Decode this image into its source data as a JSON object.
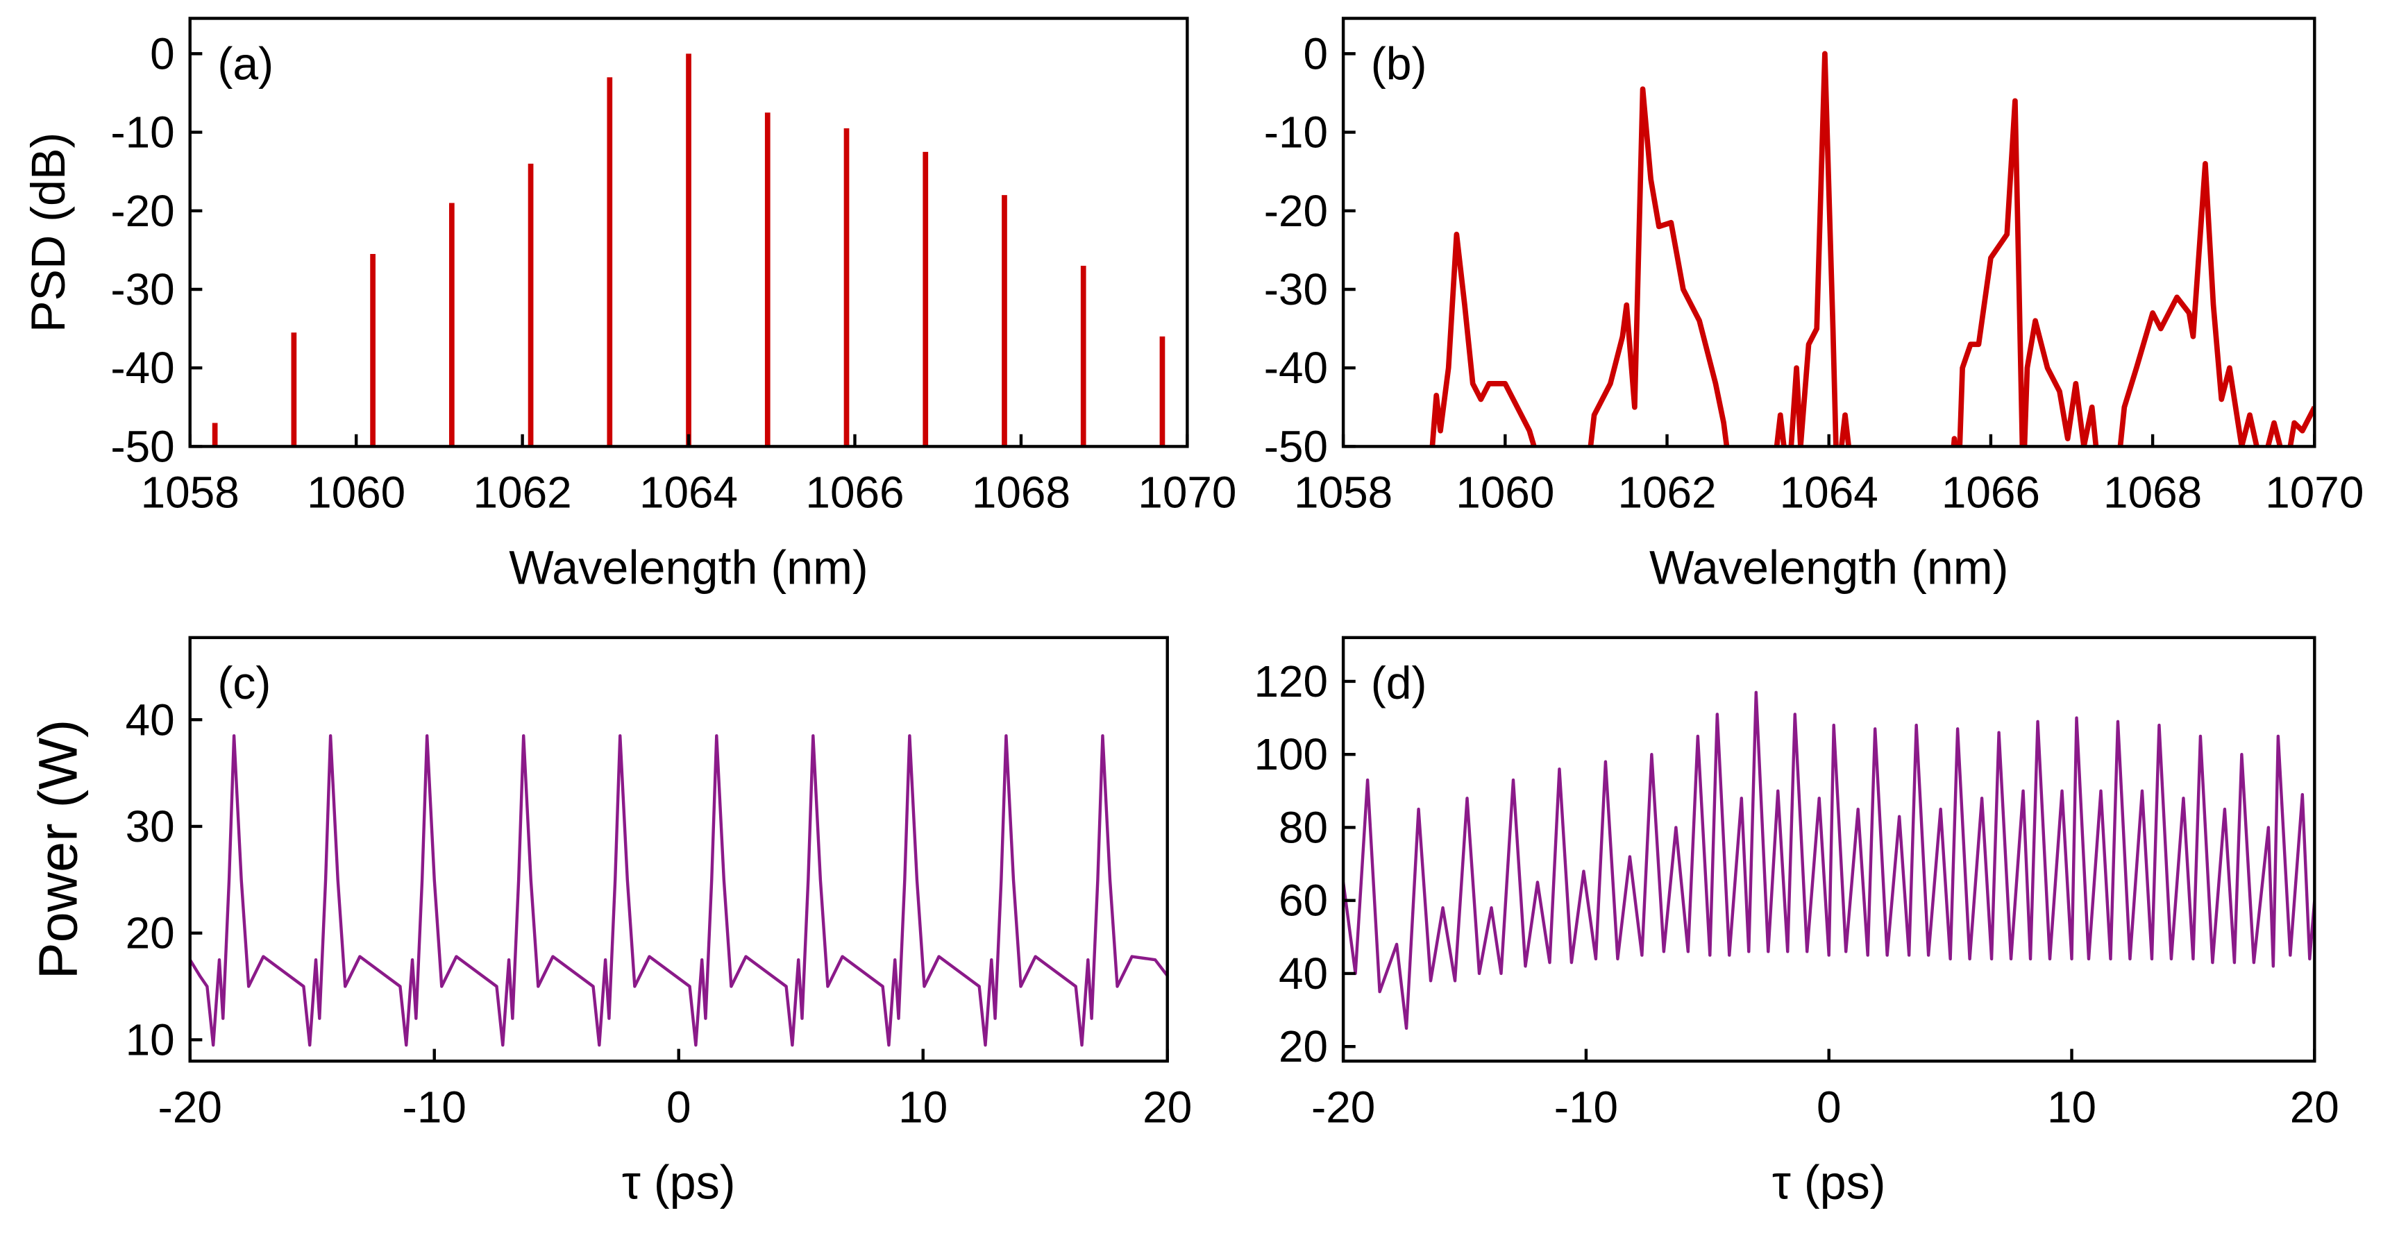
{
  "chart_data": [
    {
      "type": "stem",
      "panel_label": "(a)",
      "xlabel": "Wavelength (nm)",
      "ylabel": "PSD (dB)",
      "color": "#cc0000",
      "x": [
        1058.3,
        1059.25,
        1060.2,
        1061.15,
        1062.1,
        1063.05,
        1064.0,
        1064.95,
        1065.9,
        1066.85,
        1067.8,
        1068.75,
        1069.7
      ],
      "values": [
        -47,
        -35.5,
        -25.5,
        -19,
        -14,
        -3,
        0,
        -7.5,
        -9.5,
        -12.5,
        -18,
        -27,
        -36
      ],
      "xlim": [
        1058,
        1070
      ],
      "xticks": [
        1058,
        1060,
        1062,
        1064,
        1066,
        1068,
        1070
      ],
      "ylim": [
        -50,
        4.5
      ],
      "yticks": [
        0,
        -10,
        -20,
        -30,
        -40,
        -50
      ]
    },
    {
      "type": "line",
      "panel_label": "(b)",
      "xlabel": "Wavelength (nm)",
      "color": "#cc0000",
      "x": [
        1059.0,
        1059.1,
        1059.15,
        1059.2,
        1059.3,
        1059.4,
        1059.5,
        1059.6,
        1059.7,
        1059.8,
        1060.0,
        1060.1,
        1060.3,
        1060.5,
        1061.0,
        1061.1,
        1061.3,
        1061.45,
        1061.5,
        1061.6,
        1061.7,
        1061.8,
        1061.9,
        1062.05,
        1062.2,
        1062.4,
        1062.6,
        1062.7,
        1062.8,
        1063.3,
        1063.4,
        1063.5,
        1063.6,
        1063.65,
        1063.75,
        1063.85,
        1063.95,
        1064.05,
        1064.1,
        1064.2,
        1064.3,
        1065.5,
        1065.55,
        1065.6,
        1065.65,
        1065.75,
        1065.85,
        1066.0,
        1066.2,
        1066.3,
        1066.35,
        1066.4,
        1066.45,
        1066.55,
        1066.7,
        1066.85,
        1066.95,
        1067.05,
        1067.15,
        1067.25,
        1067.35,
        1067.55,
        1067.65,
        1067.8,
        1068.0,
        1068.1,
        1068.3,
        1068.45,
        1068.5,
        1068.65,
        1068.75,
        1068.85,
        1068.95,
        1069.1,
        1069.2,
        1069.35,
        1069.5,
        1069.65,
        1069.75,
        1069.85,
        1070.0
      ],
      "values": [
        -55,
        -50,
        -43.5,
        -48,
        -40,
        -23,
        -32,
        -42,
        -44,
        -42,
        -42,
        -44,
        -48,
        -55,
        -55,
        -46,
        -42,
        -36,
        -32,
        -45,
        -4.5,
        -16,
        -22,
        -21.5,
        -30,
        -34,
        -42,
        -47,
        -55,
        -55,
        -46,
        -55,
        -40,
        -50,
        -37,
        -35,
        0,
        -35,
        -55,
        -46,
        -55,
        -55,
        -49,
        -55,
        -40,
        -37,
        -37,
        -26,
        -23,
        -6,
        -30,
        -55,
        -40,
        -34,
        -40,
        -43,
        -49,
        -42,
        -50,
        -45,
        -55,
        -55,
        -45,
        -40,
        -33,
        -35,
        -31,
        -33,
        -36,
        -14,
        -32,
        -44,
        -40,
        -50,
        -46,
        -53,
        -47,
        -53,
        -47,
        -48,
        -45
      ],
      "xlim": [
        1058,
        1070
      ],
      "xticks": [
        1058,
        1060,
        1062,
        1064,
        1066,
        1068,
        1070
      ],
      "ylim": [
        -50,
        4.5
      ],
      "yticks": [
        0,
        -10,
        -20,
        -30,
        -40,
        -50
      ]
    },
    {
      "type": "line",
      "panel_label": "(c)",
      "xlabel": "τ (ps)",
      "ylabel": "Power (W)",
      "color": "#8b1a89",
      "x": [
        -20,
        -19.6,
        -19.3,
        -19.05,
        -18.8,
        -18.65,
        -18.4,
        -18.2,
        -17.9,
        -17.6,
        -17.0,
        -15.35,
        -15.1,
        -14.85,
        -14.7,
        -14.45,
        -14.25,
        -13.95,
        -13.65,
        -13.05,
        -11.4,
        -11.15,
        -10.9,
        -10.75,
        -10.5,
        -10.3,
        -10.0,
        -9.7,
        -9.1,
        -7.45,
        -7.2,
        -6.95,
        -6.8,
        -6.55,
        -6.35,
        -6.05,
        -5.75,
        -5.15,
        -3.5,
        -3.25,
        -3.0,
        -2.85,
        -2.6,
        -2.4,
        -2.1,
        -1.8,
        -1.2,
        0.45,
        0.7,
        0.95,
        1.1,
        1.35,
        1.55,
        1.85,
        2.15,
        2.75,
        4.4,
        4.65,
        4.9,
        5.05,
        5.3,
        5.5,
        5.8,
        6.1,
        6.7,
        8.35,
        8.6,
        8.85,
        9.0,
        9.25,
        9.45,
        9.75,
        10.05,
        10.65,
        12.3,
        12.55,
        12.8,
        12.95,
        13.2,
        13.4,
        13.7,
        14.0,
        14.6,
        16.25,
        16.5,
        16.75,
        16.9,
        17.15,
        17.35,
        17.65,
        17.95,
        18.55,
        19.5,
        20
      ],
      "values": [
        17.5,
        16,
        15,
        9.5,
        17.5,
        12,
        25,
        38.5,
        25,
        15,
        17.8,
        15,
        9.5,
        17.5,
        12,
        25,
        38.5,
        25,
        15,
        17.8,
        15,
        9.5,
        17.5,
        12,
        25,
        38.5,
        25,
        15,
        17.8,
        15,
        9.5,
        17.5,
        12,
        25,
        38.5,
        25,
        15,
        17.8,
        15,
        9.5,
        17.5,
        12,
        25,
        38.5,
        25,
        15,
        17.8,
        15,
        9.5,
        17.5,
        12,
        25,
        38.5,
        25,
        15,
        17.8,
        15,
        9.5,
        17.5,
        12,
        25,
        38.5,
        25,
        15,
        17.8,
        15,
        9.5,
        17.5,
        12,
        25,
        38.5,
        25,
        15,
        17.8,
        15,
        9.5,
        17.5,
        12,
        25,
        38.5,
        25,
        15,
        17.8,
        15,
        9.5,
        17.5,
        12,
        25,
        38.5,
        25,
        15,
        17.8,
        17.5,
        16
      ],
      "xlim": [
        -20,
        20
      ],
      "xticks": [
        -20,
        -10,
        0,
        10,
        20
      ],
      "ylim": [
        8,
        47.7
      ],
      "yticks": [
        10,
        20,
        30,
        40
      ]
    },
    {
      "type": "line",
      "panel_label": "(d)",
      "xlabel": "τ (ps)",
      "color": "#8b1a89",
      "x": [
        -20,
        -19.5,
        -19,
        -18.5,
        -17.8,
        -17.4,
        -16.9,
        -16.4,
        -15.9,
        -15.4,
        -14.9,
        -14.4,
        -13.9,
        -13.5,
        -13.0,
        -12.5,
        -12.0,
        -11.5,
        -11.1,
        -10.6,
        -10.1,
        -9.6,
        -9.2,
        -8.7,
        -8.2,
        -7.7,
        -7.3,
        -6.8,
        -6.3,
        -5.8,
        -5.4,
        -4.9,
        -4.6,
        -4.1,
        -3.6,
        -3.3,
        -3.0,
        -2.5,
        -2.1,
        -1.7,
        -1.4,
        -0.9,
        -0.4,
        0,
        0.2,
        0.7,
        1.2,
        1.6,
        1.9,
        2.4,
        2.9,
        3.3,
        3.6,
        4.1,
        4.6,
        5.0,
        5.3,
        5.8,
        6.3,
        6.7,
        7.0,
        7.5,
        8.0,
        8.3,
        8.6,
        9.1,
        9.6,
        10.0,
        10.2,
        10.7,
        11.2,
        11.6,
        11.9,
        12.4,
        12.9,
        13.3,
        13.6,
        14.1,
        14.6,
        15.0,
        15.3,
        15.8,
        16.3,
        16.7,
        17.0,
        17.5,
        18.1,
        18.3,
        18.5,
        19.0,
        19.5,
        19.8,
        20
      ],
      "values": [
        65,
        40,
        93,
        35,
        48,
        25,
        85,
        38,
        58,
        38,
        88,
        40,
        58,
        40,
        93,
        42,
        65,
        43,
        96,
        43,
        68,
        44,
        98,
        44,
        72,
        45,
        100,
        46,
        80,
        46,
        105,
        45,
        111,
        45,
        88,
        46,
        117,
        46,
        90,
        46,
        111,
        46,
        88,
        45,
        108,
        46,
        85,
        45,
        107,
        45,
        83,
        45,
        108,
        45,
        85,
        44,
        107,
        44,
        88,
        44,
        106,
        44,
        90,
        44,
        109,
        44,
        90,
        44,
        110,
        44,
        90,
        44,
        109,
        44,
        90,
        44,
        108,
        44,
        88,
        44,
        105,
        43,
        85,
        43,
        100,
        43,
        80,
        42,
        105,
        45,
        89,
        44,
        60
      ],
      "xlim": [
        -20,
        20
      ],
      "xticks": [
        -20,
        -10,
        0,
        10,
        20
      ],
      "ylim": [
        16,
        132
      ],
      "yticks": [
        20,
        40,
        60,
        80,
        100,
        120
      ]
    }
  ]
}
